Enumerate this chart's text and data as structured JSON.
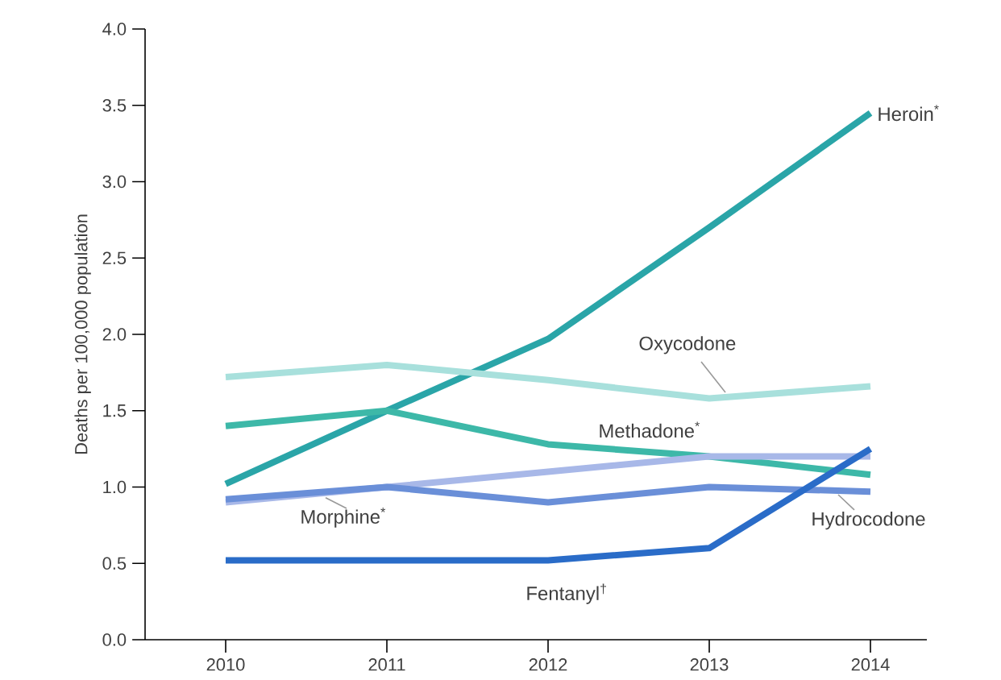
{
  "chart_data": {
    "type": "line",
    "ylabel": "Deaths per 100,000 population",
    "x": [
      2010,
      2011,
      2012,
      2013,
      2014
    ],
    "xlim": [
      2009.5,
      2014.35
    ],
    "xticks": [
      2010,
      2011,
      2012,
      2013,
      2014
    ],
    "ylim": [
      0,
      4
    ],
    "yticks": [
      {
        "value": 0,
        "label": "0.0"
      },
      {
        "value": 0.5,
        "label": "0.5"
      },
      {
        "value": 1,
        "label": "1.0"
      },
      {
        "value": 1.5,
        "label": "1.5"
      },
      {
        "value": 2,
        "label": "2.0"
      },
      {
        "value": 2.5,
        "label": "2.5"
      },
      {
        "value": 3,
        "label": "3.0"
      },
      {
        "value": 3.5,
        "label": "3.5"
      },
      {
        "value": 4,
        "label": "4.0"
      }
    ],
    "grid": false,
    "legend": false,
    "series": [
      {
        "name": "Heroin$^{*}$",
        "color": "#2aa5a8",
        "values": [
          1.02,
          1.5,
          1.97,
          2.7,
          3.45
        ]
      },
      {
        "name": "Oxycodone",
        "color": "#a8e0dc",
        "values": [
          1.72,
          1.8,
          1.7,
          1.58,
          1.66
        ]
      },
      {
        "name": "Methadone$^{*}$",
        "color": "#3db8a8",
        "values": [
          1.4,
          1.5,
          1.28,
          1.2,
          1.08
        ]
      },
      {
        "name": "Morphine$^{*}$",
        "color": "#a8b8e8",
        "values": [
          0.9,
          1.0,
          1.1,
          1.2,
          1.2
        ]
      },
      {
        "name": "Hydrocodone",
        "color": "#6a8fd8",
        "values": [
          0.92,
          1.0,
          0.9,
          1.0,
          0.97
        ]
      },
      {
        "name": "Fentanyl$^{†}$",
        "color": "#2a6cc8",
        "values": [
          0.52,
          0.52,
          0.52,
          0.6,
          1.25
        ]
      }
    ]
  }
}
